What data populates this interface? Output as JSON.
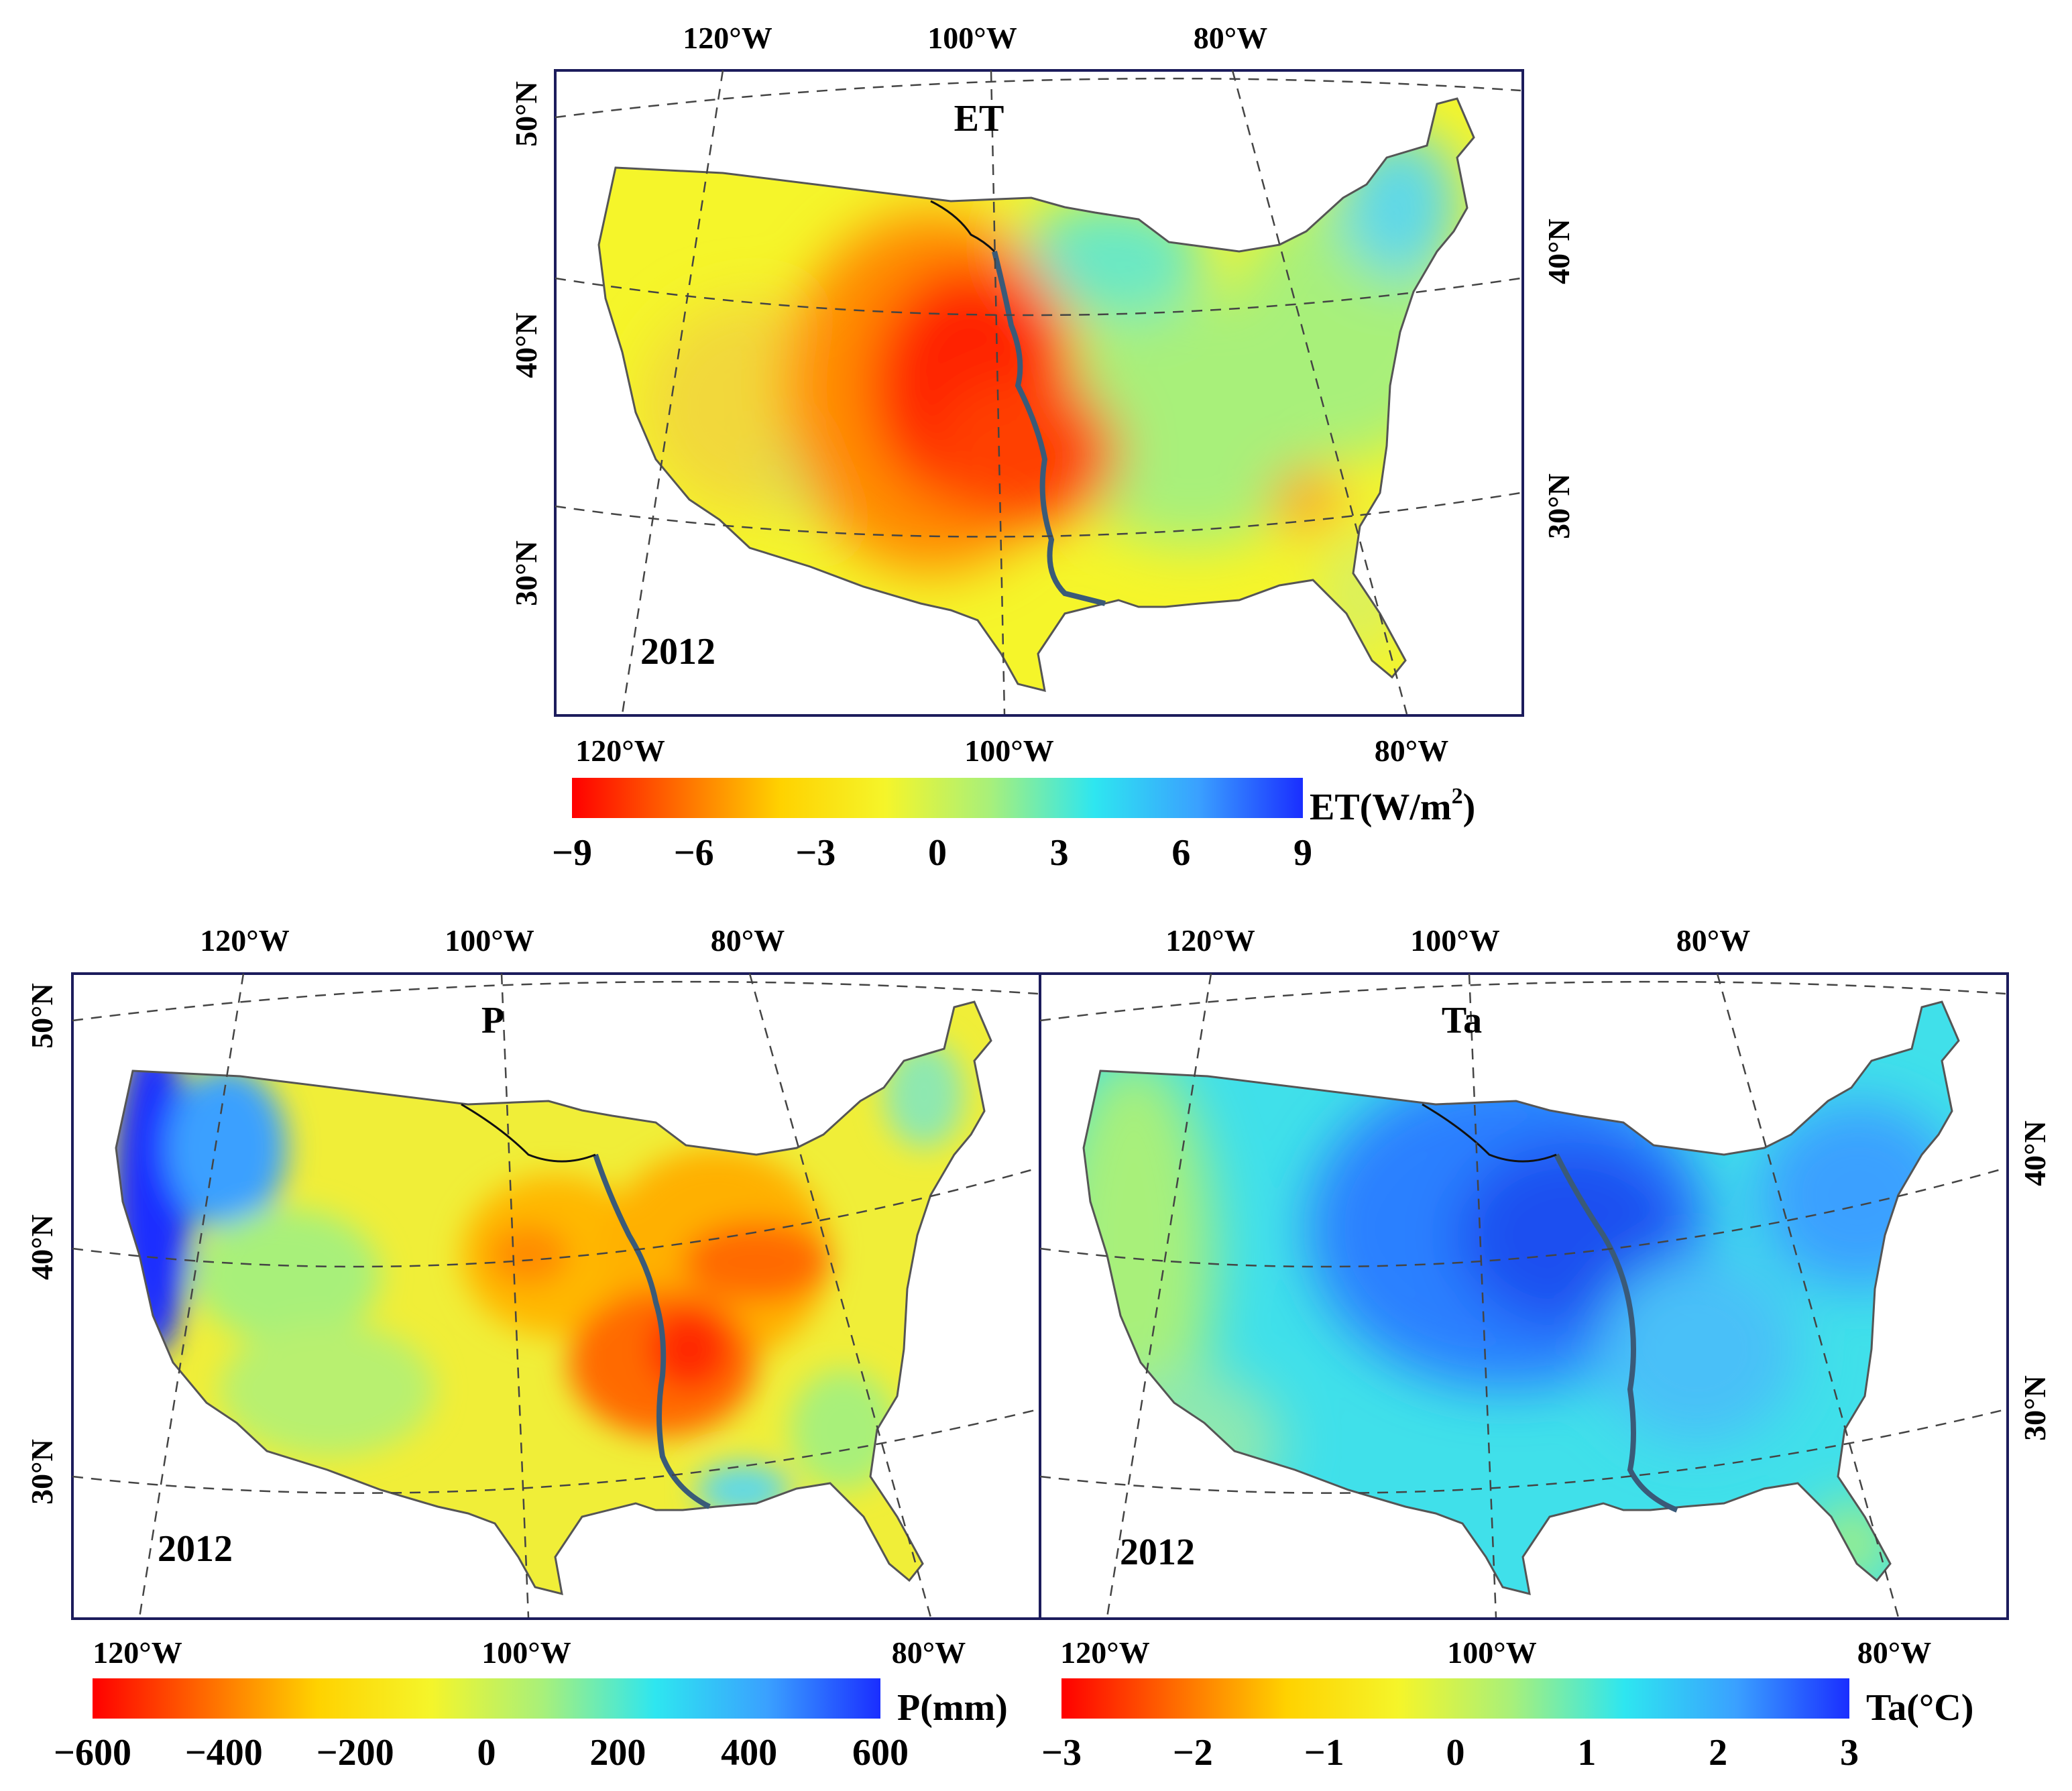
{
  "panels": [
    {
      "id": "et",
      "title": "ET",
      "year": "2012",
      "top_lon_labels": [
        "120°W",
        "100°W",
        "80°W"
      ],
      "bottom_lon_labels": [
        "120°W",
        "100°W",
        "80°W"
      ],
      "left_lat_labels": [
        "50°N",
        "40°N",
        "30°N"
      ],
      "right_lat_labels": [
        "40°N",
        "30°N"
      ],
      "pattern": "et"
    },
    {
      "id": "p",
      "title": "P",
      "year": "2012",
      "top_lon_labels": [
        "120°W",
        "100°W",
        "80°W"
      ],
      "bottom_lon_labels": [
        "120°W",
        "100°W",
        "80°W"
      ],
      "left_lat_labels": [
        "50°N",
        "40°N",
        "30°N"
      ],
      "right_lat_labels": [],
      "pattern": "p"
    },
    {
      "id": "ta",
      "title": "Ta",
      "year": "2012",
      "top_lon_labels": [
        "120°W",
        "100°W",
        "80°W"
      ],
      "bottom_lon_labels": [
        "120°W",
        "100°W",
        "80°W"
      ],
      "left_lat_labels": [],
      "right_lat_labels": [
        "40°N",
        "30°N"
      ],
      "pattern": "ta"
    }
  ],
  "colorbars": [
    {
      "id": "et",
      "unit_label": "ET(W/m",
      "unit_sup": "2",
      "unit_close": ")",
      "ticks": [
        "−9",
        "−6",
        "−3",
        "0",
        "3",
        "6",
        "9"
      ]
    },
    {
      "id": "p",
      "unit_label": "P(mm)",
      "ticks": [
        "−600",
        "−400",
        "−200",
        "0",
        "200",
        "400",
        "600"
      ]
    },
    {
      "id": "ta",
      "unit_label": "Ta(°C)",
      "ticks": [
        "−3",
        "−2",
        "−1",
        "0",
        "1",
        "2",
        "3"
      ]
    }
  ],
  "colormap": [
    "#ff0000",
    "#ff6a00",
    "#ffd200",
    "#f5f52a",
    "#a8f07a",
    "#2ee6f0",
    "#3aa0ff",
    "#1a2eff"
  ],
  "colors": {
    "frame": "#1c1c5c",
    "river": "#3a5a78",
    "outline": "#555555",
    "graticule": "#444444"
  }
}
